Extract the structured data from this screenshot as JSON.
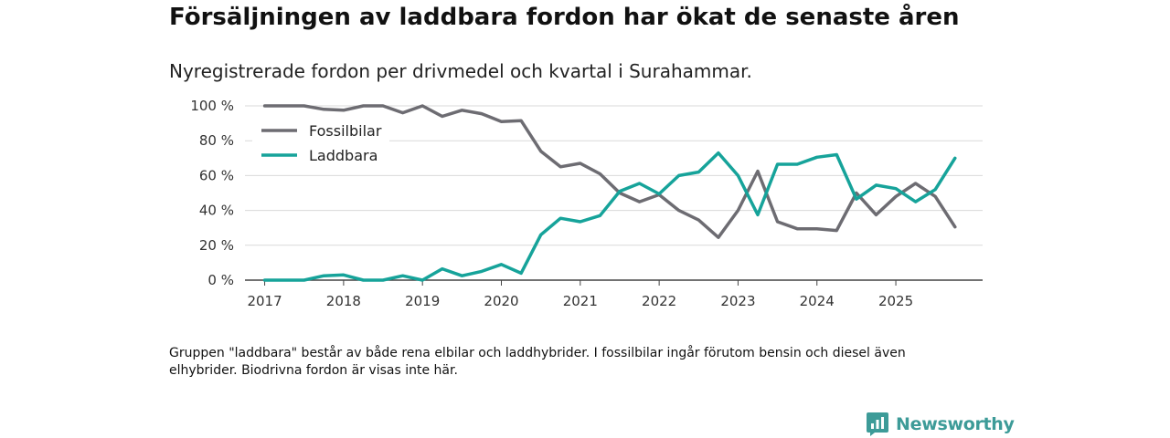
{
  "title": "Försäljningen av laddbara fordon har ökat de senaste åren",
  "subtitle": "Nyregistrerade fordon per drivmedel och kvartal i Surahammar.",
  "footnote": "Gruppen \"laddbara\" består av både rena elbilar och laddhybrider. I fossilbilar ingår förutom bensin och diesel även elhybrider. Biodrivna fordon är visas inte här.",
  "brand": {
    "name": "Newsworthy",
    "icon": "newsworthy-logo-icon",
    "color": "#3d9b98"
  },
  "chart_data": {
    "type": "line",
    "title": "Försäljningen av laddbara fordon har ökat de senaste åren",
    "xlabel": "",
    "ylabel": "",
    "ylim": [
      0,
      100
    ],
    "xlim": [
      2016.75,
      2026.1
    ],
    "grid": true,
    "legend_position": "top-left",
    "x_ticks": [
      2017,
      2018,
      2019,
      2020,
      2021,
      2022,
      2023,
      2024,
      2025
    ],
    "x_tick_labels": [
      "2017",
      "2018",
      "2019",
      "2020",
      "2021",
      "2022",
      "2023",
      "2024",
      "2025"
    ],
    "y_ticks": [
      0,
      20,
      40,
      60,
      80,
      100
    ],
    "y_tick_labels": [
      "0 %",
      "20 %",
      "40 %",
      "60 %",
      "80 %",
      "100 %"
    ],
    "x": [
      2017.0,
      2017.25,
      2017.5,
      2017.75,
      2018.0,
      2018.25,
      2018.5,
      2018.75,
      2019.0,
      2019.25,
      2019.5,
      2019.75,
      2020.0,
      2020.25,
      2020.5,
      2020.75,
      2021.0,
      2021.25,
      2021.5,
      2021.75,
      2022.0,
      2022.25,
      2022.5,
      2022.75,
      2023.0,
      2023.25,
      2023.5,
      2023.75,
      2024.0,
      2024.25,
      2024.5,
      2024.75,
      2025.0,
      2025.25,
      2025.5,
      2025.75
    ],
    "series": [
      {
        "name": "Fossilbilar",
        "color": "#6d6c72",
        "values": [
          100,
          100,
          100,
          98,
          97.5,
          100,
          100,
          96,
          100,
          94,
          97.5,
          95.5,
          91,
          91.5,
          74,
          65,
          67,
          61,
          50,
          45,
          49,
          40,
          34.5,
          24.5,
          40,
          62.5,
          33.5,
          29.5,
          29.5,
          28.5,
          50,
          37.5,
          48,
          55.5,
          48,
          30.5
        ]
      },
      {
        "name": "Laddbara",
        "color": "#16a39a",
        "values": [
          0,
          0,
          0,
          2.5,
          3,
          0,
          0,
          2.5,
          0,
          6.5,
          2.5,
          5,
          9,
          4,
          26,
          35.5,
          33.5,
          37,
          51,
          55.5,
          49.5,
          60,
          62,
          73,
          60,
          37.5,
          66.5,
          66.5,
          70.5,
          72,
          46.5,
          54.5,
          52.5,
          45,
          52,
          70
        ]
      }
    ]
  }
}
